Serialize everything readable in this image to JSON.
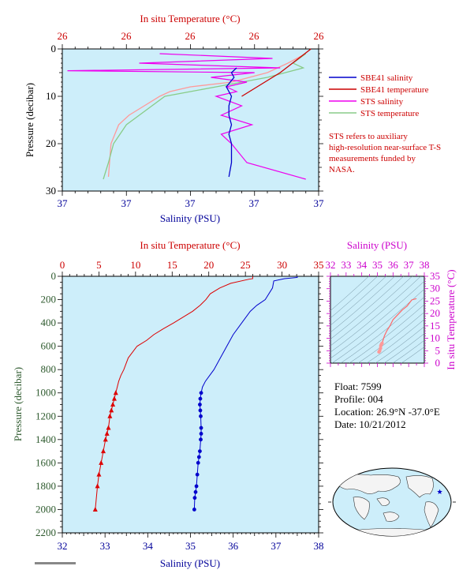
{
  "chart_data": [
    {
      "type": "line",
      "title": "",
      "x_top_label": "In situ Temperature (°C)",
      "x_top_ticks": [
        "26",
        "26",
        "26",
        "26",
        "26"
      ],
      "x_bottom_label": "Salinity (PSU)",
      "x_bottom_ticks": [
        "37",
        "37",
        "37",
        "37",
        "37"
      ],
      "ylabel": "Pressure (decibar)",
      "y_ticks": [
        "0",
        "10",
        "20",
        "30"
      ],
      "ylim": [
        0,
        30
      ],
      "grid": false,
      "legend_position": "right",
      "series": [
        {
          "name": "SBE41 salinity",
          "color": "#0000cc",
          "x": [
            0.68,
            0.66,
            0.67,
            0.64,
            0.66,
            0.65,
            0.65,
            0.66,
            0.65,
            0.66,
            0.66,
            0.65
          ],
          "y": [
            4,
            5,
            6,
            8,
            10,
            12,
            14,
            16,
            18,
            20,
            24,
            27
          ]
        },
        {
          "name": "SBE41 temperature",
          "color": "#cc0000",
          "x": [
            0.97,
            0.85,
            0.7
          ],
          "y": [
            0,
            5,
            10
          ]
        },
        {
          "name": "STS salinity",
          "color": "#ee00ee",
          "x": [
            0.38,
            0.82,
            0.3,
            0.85,
            0.02,
            0.75,
            0.58,
            0.72,
            0.64,
            0.68,
            0.6,
            0.7,
            0.62,
            0.74,
            0.62,
            0.66,
            0.72,
            0.95
          ],
          "y": [
            1,
            2,
            3,
            4,
            4.6,
            5,
            6,
            7,
            8,
            9,
            10,
            12,
            14,
            16,
            18,
            20,
            24,
            27.5
          ]
        },
        {
          "name": "STS temperature",
          "color": "#88cc88",
          "x": [
            0.95,
            0.9,
            0.94,
            0.8,
            0.6,
            0.5,
            0.4,
            0.35,
            0.3,
            0.25,
            0.2,
            0.18,
            0.16
          ],
          "y": [
            1,
            3,
            4,
            6,
            8,
            9,
            10,
            12,
            14,
            16,
            20,
            24,
            27.5
          ]
        },
        {
          "name": "",
          "color": "#ff9999",
          "x": [
            0.95,
            0.88,
            0.8,
            0.66,
            0.5,
            0.42,
            0.38,
            0.32,
            0.26,
            0.22,
            0.19,
            0.18
          ],
          "y": [
            1,
            3,
            5,
            7,
            8,
            9,
            10,
            12,
            14,
            16,
            20,
            27
          ]
        }
      ],
      "note": "STS refers to auxiliary high-resolution near-surface T-S measurements funded by NASA."
    },
    {
      "type": "line",
      "title": "",
      "x_top_label": "In situ Temperature (°C)",
      "x_top_ticks": [
        "0",
        "5",
        "10",
        "15",
        "20",
        "25",
        "30",
        "35"
      ],
      "x_top_range": [
        0,
        35
      ],
      "x_bottom_label": "Salinity (PSU)",
      "x_bottom_ticks": [
        "32",
        "33",
        "34",
        "35",
        "36",
        "37",
        "38"
      ],
      "x_bottom_range": [
        32,
        38
      ],
      "ylabel": "Pressure (decibar)",
      "y_ticks": [
        "0",
        "200",
        "400",
        "600",
        "800",
        "1000",
        "1200",
        "1400",
        "1600",
        "1800",
        "2000",
        "2200"
      ],
      "ylim": [
        0,
        2200
      ],
      "grid": false,
      "series": [
        {
          "name": "temperature",
          "axis": "top",
          "color": "#dd0000",
          "marker": "triangle",
          "marker_from": 1000,
          "x": [
            26.0,
            26.0,
            25.5,
            23.0,
            21.5,
            20.2,
            19.6,
            18.8,
            17.8,
            16.5,
            15.2,
            13.8,
            12.5,
            11.5,
            10.2,
            9.0,
            8.4,
            8.0,
            7.7,
            7.5,
            7.3,
            7.1,
            6.9,
            6.7,
            6.5,
            6.3,
            6.1,
            5.9,
            5.6,
            5.3,
            5.0,
            4.8,
            4.5
          ],
          "y": [
            0,
            20,
            25,
            60,
            100,
            150,
            200,
            250,
            300,
            350,
            400,
            450,
            500,
            550,
            600,
            700,
            800,
            850,
            900,
            950,
            1000,
            1050,
            1100,
            1150,
            1200,
            1300,
            1350,
            1400,
            1500,
            1600,
            1700,
            1800,
            2000
          ]
        },
        {
          "name": "salinity",
          "axis": "bottom",
          "color": "#0000cc",
          "marker": "circle",
          "marker_from": 1000,
          "x": [
            37.5,
            37.5,
            37.2,
            36.95,
            36.92,
            36.75,
            36.55,
            36.4,
            36.2,
            36.0,
            35.85,
            35.7,
            35.55,
            35.45,
            35.35,
            35.28,
            35.25,
            35.23,
            35.22,
            35.23,
            35.24,
            35.25,
            35.25,
            35.24,
            35.22,
            35.2,
            35.18,
            35.16,
            35.14,
            35.12,
            35.1,
            35.09
          ],
          "y": [
            0,
            10,
            20,
            40,
            100,
            200,
            250,
            300,
            400,
            500,
            600,
            700,
            800,
            850,
            900,
            950,
            1000,
            1050,
            1100,
            1150,
            1200,
            1300,
            1350,
            1400,
            1500,
            1550,
            1600,
            1700,
            1800,
            1850,
            1900,
            2000
          ]
        }
      ]
    },
    {
      "type": "scatter",
      "title": "",
      "x_label": "Salinity (PSU)",
      "x_ticks": [
        "32",
        "33",
        "34",
        "35",
        "36",
        "37",
        "38"
      ],
      "x_range": [
        32,
        38
      ],
      "y_label": "In situ Temperature (°C)",
      "y_ticks": [
        "0",
        "5",
        "10",
        "15",
        "20",
        "25",
        "30",
        "35"
      ],
      "y_range": [
        0,
        35
      ],
      "grid": false,
      "series": [
        {
          "name": "",
          "color": "#ff6666",
          "marker_color": "#ff9999",
          "x": [
            37.5,
            37.2,
            36.9,
            36.6,
            36.3,
            36.0,
            35.8,
            35.6,
            35.45,
            35.35,
            35.3,
            35.25,
            35.22,
            35.2,
            35.15,
            35.1
          ],
          "y": [
            26,
            25.5,
            23,
            21.5,
            19.5,
            17.5,
            15,
            13,
            11,
            9,
            8,
            7.5,
            7,
            6,
            5,
            4.5
          ]
        }
      ]
    }
  ],
  "info": {
    "float": "Float:  7599",
    "profile": "Profile:  004",
    "location": "Location:  26.9°N  -37.0°E",
    "date": "Date:  10/21/2012"
  },
  "map": {
    "marker": "star",
    "marker_color": "#0000cc",
    "lat": 26.9,
    "lon": -37.0
  },
  "colors": {
    "plot_background": "#cdeefa",
    "temperature": "#cc0000",
    "salinity": "#000099",
    "ts_diagram": "#cc00cc",
    "pressure_label": "#2e5a2e"
  }
}
